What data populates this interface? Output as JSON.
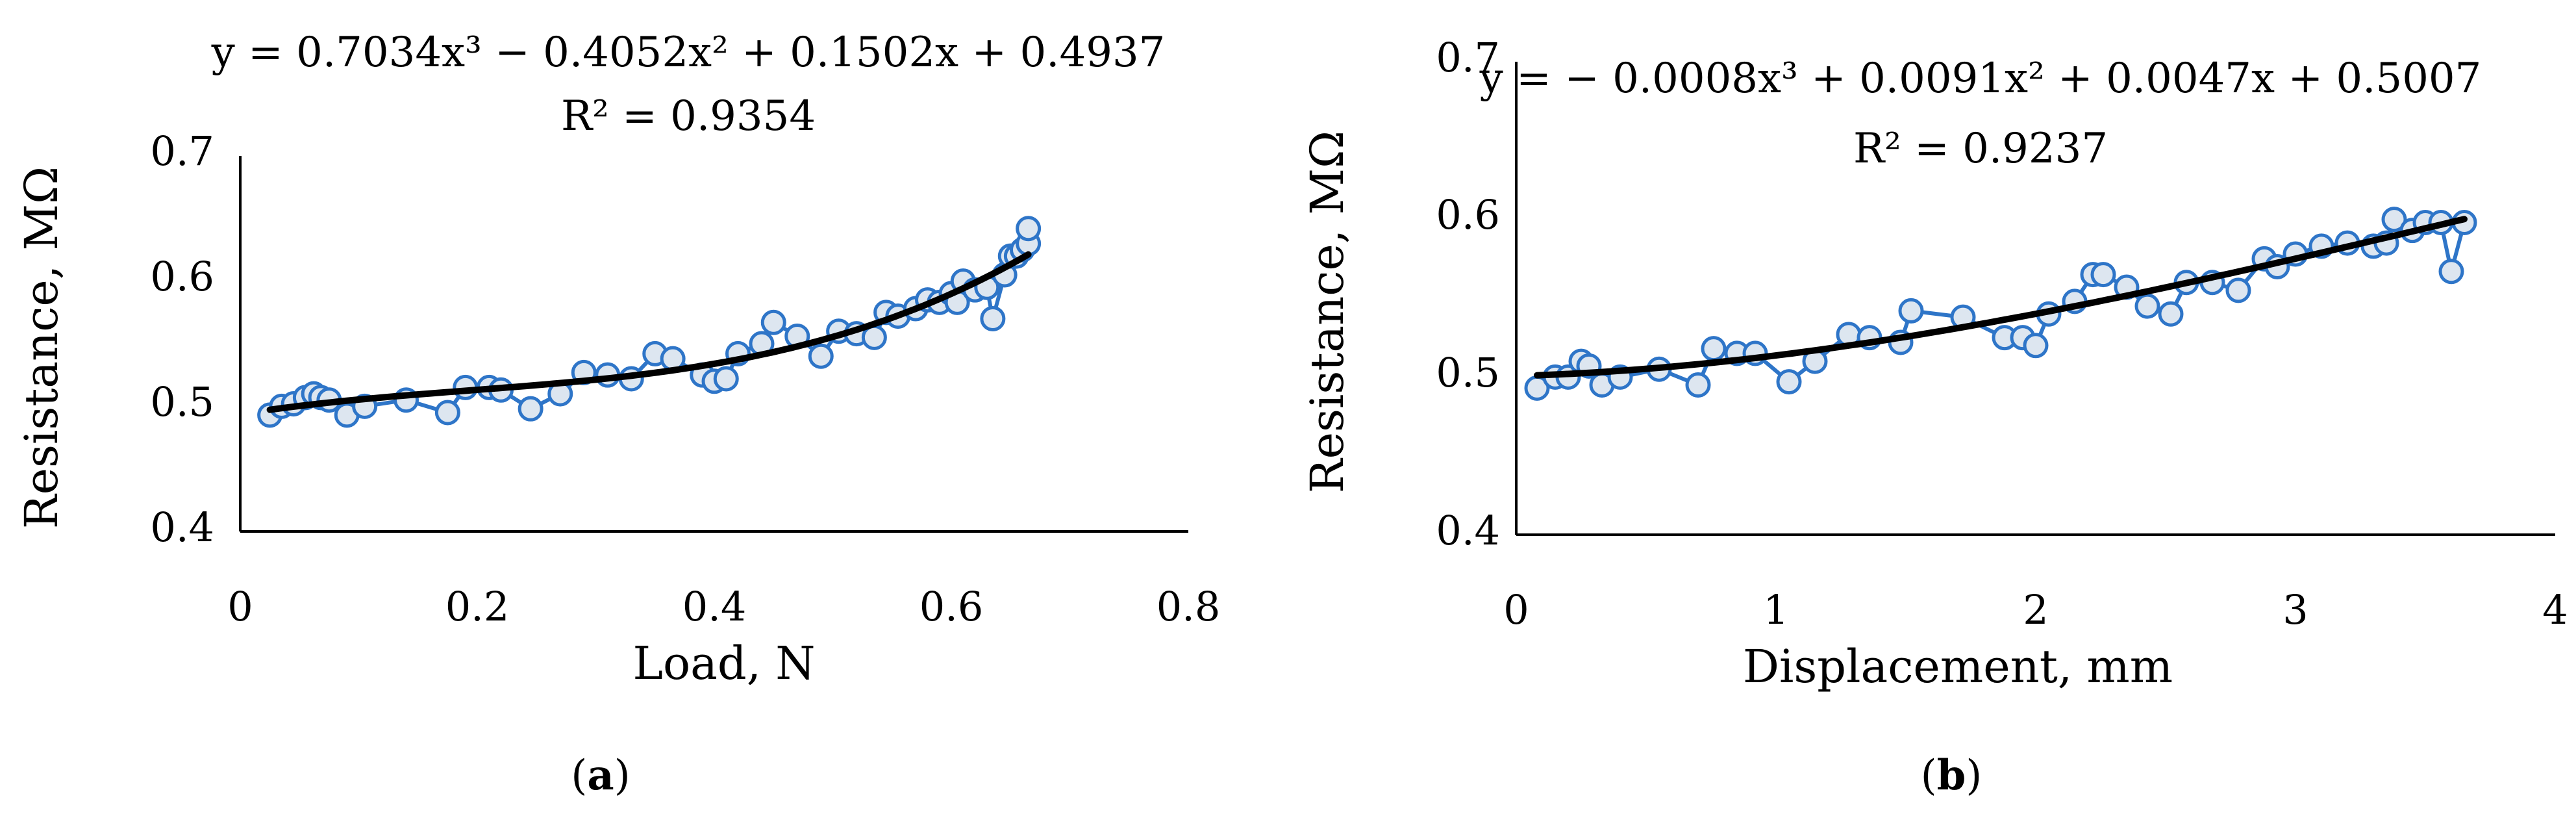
{
  "colors": {
    "series_stroke": "#2E75C8",
    "marker_fill": "#DDE6F0",
    "trend": "#000000",
    "axis": "#000000"
  },
  "chart_data": [
    {
      "type": "scatter",
      "panel_label": {
        "open": "(",
        "letter": "a",
        "close": ")"
      },
      "xlabel": "Load, N",
      "ylabel": "Resistance, MΩ",
      "xlim": [
        0,
        0.8
      ],
      "ylim": [
        0.4,
        0.7
      ],
      "xticks": [
        "0",
        "0.2",
        "0.4",
        "0.6",
        "0.8"
      ],
      "yticks": [
        "0.4",
        "0.5",
        "0.6",
        "0.7"
      ],
      "equation": "y = 0.7034x³ − 0.4052x² + 0.1502x + 0.4937",
      "r_squared": "R² = 0.9354",
      "trend_coefficients": [
        0.7034,
        -0.4052,
        0.1502,
        0.4937
      ],
      "trend_range": [
        0.025,
        0.665
      ],
      "grid": false,
      "series": {
        "x": [
          0.025,
          0.035,
          0.045,
          0.055,
          0.062,
          0.068,
          0.075,
          0.09,
          0.105,
          0.14,
          0.175,
          0.19,
          0.21,
          0.22,
          0.245,
          0.27,
          0.29,
          0.31,
          0.33,
          0.35,
          0.365,
          0.39,
          0.4,
          0.41,
          0.42,
          0.44,
          0.45,
          0.47,
          0.49,
          0.505,
          0.52,
          0.535,
          0.545,
          0.555,
          0.57,
          0.58,
          0.59,
          0.6,
          0.605,
          0.61,
          0.62,
          0.63,
          0.635,
          0.645,
          0.65,
          0.655,
          0.66,
          0.665,
          0.665
        ],
        "y": [
          0.493,
          0.5,
          0.502,
          0.507,
          0.51,
          0.507,
          0.505,
          0.493,
          0.5,
          0.505,
          0.495,
          0.515,
          0.515,
          0.513,
          0.498,
          0.51,
          0.527,
          0.525,
          0.522,
          0.542,
          0.538,
          0.525,
          0.52,
          0.522,
          0.542,
          0.55,
          0.567,
          0.556,
          0.54,
          0.56,
          0.558,
          0.555,
          0.575,
          0.572,
          0.578,
          0.585,
          0.583,
          0.59,
          0.583,
          0.6,
          0.593,
          0.595,
          0.57,
          0.605,
          0.62,
          0.62,
          0.625,
          0.63,
          0.642
        ]
      }
    },
    {
      "type": "scatter",
      "panel_label": {
        "open": "(",
        "letter": "b",
        "close": ")"
      },
      "xlabel": "Displacement, mm",
      "ylabel": "Resistance, MΩ",
      "xlim": [
        0,
        4
      ],
      "ylim": [
        0.4,
        0.7
      ],
      "xticks": [
        "0",
        "1",
        "2",
        "3",
        "4"
      ],
      "yticks": [
        "0.4",
        "0.5",
        "0.6",
        "0.7"
      ],
      "equation": "y = − 0.0008x³ + 0.0091x² + 0.0047x + 0.5007",
      "r_squared": "R² = 0.9237",
      "trend_coefficients": [
        -0.0008,
        0.0091,
        0.0047,
        0.5007
      ],
      "trend_range": [
        0.08,
        3.65
      ],
      "grid": false,
      "series": {
        "x": [
          0.08,
          0.15,
          0.2,
          0.25,
          0.28,
          0.33,
          0.4,
          0.55,
          0.7,
          0.76,
          0.85,
          0.92,
          1.05,
          1.15,
          1.28,
          1.36,
          1.48,
          1.52,
          1.72,
          1.88,
          1.95,
          2.0,
          2.05,
          2.15,
          2.22,
          2.26,
          2.35,
          2.43,
          2.52,
          2.58,
          2.68,
          2.78,
          2.88,
          2.93,
          3.0,
          3.1,
          3.2,
          3.3,
          3.35,
          3.38,
          3.45,
          3.5,
          3.56,
          3.6,
          3.65
        ],
        "y": [
          0.493,
          0.5,
          0.5,
          0.51,
          0.507,
          0.495,
          0.5,
          0.505,
          0.495,
          0.518,
          0.515,
          0.515,
          0.497,
          0.51,
          0.527,
          0.525,
          0.522,
          0.542,
          0.538,
          0.525,
          0.525,
          0.52,
          0.54,
          0.548,
          0.565,
          0.565,
          0.557,
          0.545,
          0.54,
          0.56,
          0.56,
          0.555,
          0.575,
          0.57,
          0.578,
          0.583,
          0.585,
          0.583,
          0.585,
          0.6,
          0.593,
          0.598,
          0.598,
          0.567,
          0.598
        ]
      }
    }
  ]
}
